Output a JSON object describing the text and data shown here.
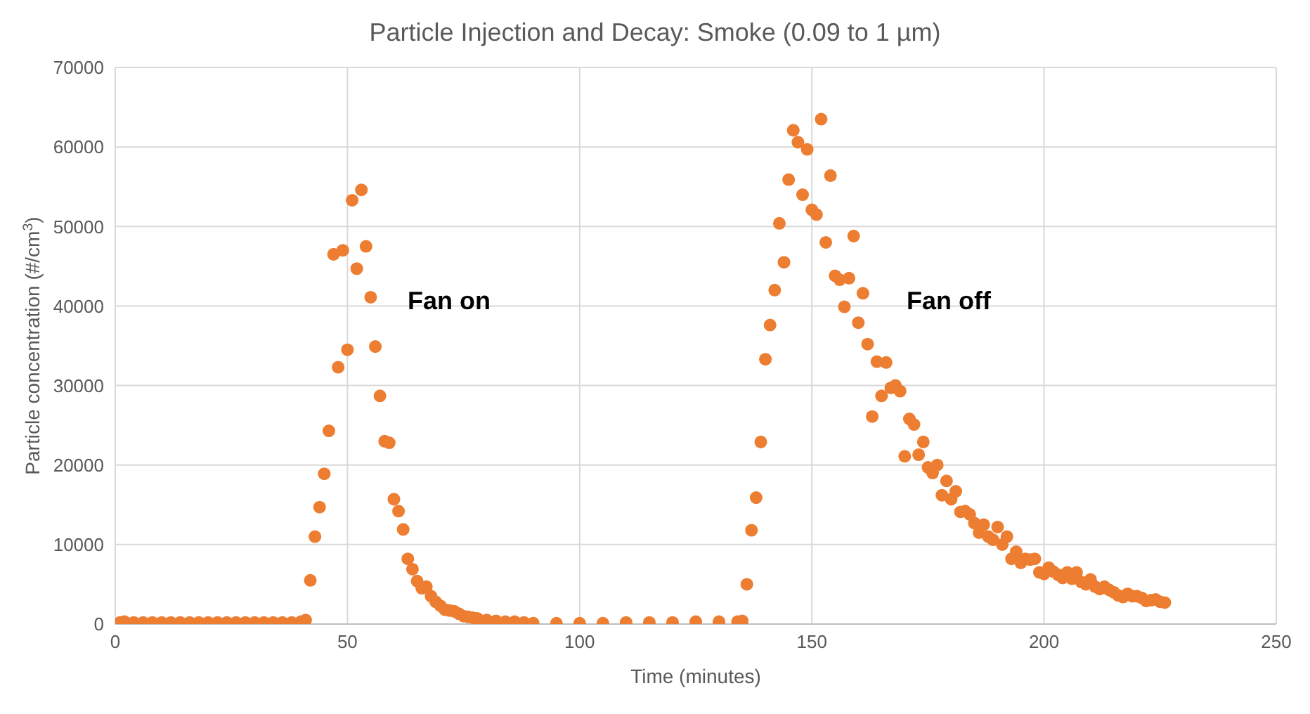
{
  "chart_data": {
    "type": "scatter",
    "title": "Particle Injection and Decay: Smoke (0.09 to 1 µm)",
    "xlabel": "Time (minutes)",
    "ylabel": "Particle concentration (#/cm$^{3}$)",
    "xlim": [
      0,
      250
    ],
    "xticks": [
      0,
      50,
      100,
      150,
      200,
      250
    ],
    "ylim": [
      0,
      70000
    ],
    "yticks": [
      0,
      10000,
      20000,
      30000,
      40000,
      50000,
      60000,
      70000
    ],
    "grid": true,
    "marker": "circle",
    "annotations": [
      "Fan on",
      "Fan off"
    ],
    "series": [
      {
        "color": "#ed7d31",
        "x": [
          1,
          2,
          4,
          6,
          8,
          10,
          12,
          14,
          16,
          18,
          20,
          22,
          24,
          26,
          28,
          30,
          32,
          34,
          36,
          38,
          40,
          41,
          42,
          43,
          44,
          45,
          46,
          47,
          48,
          49,
          50,
          51,
          52,
          53,
          54,
          55,
          56,
          57,
          58,
          59,
          60,
          61,
          62,
          63,
          64,
          65,
          66,
          67,
          68,
          69,
          70,
          71,
          72,
          73,
          74,
          75,
          76,
          77,
          78,
          80,
          82,
          84,
          86,
          88,
          90,
          95,
          100,
          105,
          110,
          115,
          120,
          125,
          130,
          134,
          135,
          136,
          137,
          138,
          139,
          140,
          141,
          142,
          143,
          144,
          145,
          146,
          147,
          148,
          149,
          150,
          151,
          152,
          153,
          154,
          155,
          156,
          157,
          158,
          159,
          160,
          161,
          162,
          163,
          164,
          165,
          166,
          167,
          168,
          169,
          170,
          171,
          172,
          173,
          174,
          175,
          176,
          177,
          178,
          179,
          180,
          181,
          182,
          183,
          184,
          185,
          186,
          187,
          188,
          189,
          190,
          191,
          192,
          193,
          194,
          195,
          196,
          197,
          198,
          199,
          200,
          201,
          202,
          203,
          204,
          205,
          206,
          207,
          208,
          209,
          210,
          211,
          212,
          213,
          214,
          215,
          216,
          217,
          218,
          219,
          220,
          221,
          222,
          223,
          224,
          225,
          226
        ],
        "values": [
          200,
          300,
          200,
          200,
          200,
          200,
          200,
          200,
          200,
          200,
          200,
          200,
          200,
          200,
          200,
          200,
          200,
          200,
          200,
          200,
          300,
          500,
          5500,
          11000,
          14700,
          18900,
          24300,
          46500,
          32300,
          47000,
          34500,
          53300,
          44700,
          54600,
          47500,
          41100,
          34900,
          28700,
          23000,
          22800,
          15700,
          14200,
          11900,
          8200,
          6900,
          5400,
          4500,
          4700,
          3500,
          2800,
          2300,
          1800,
          1700,
          1600,
          1300,
          1000,
          900,
          800,
          700,
          500,
          400,
          300,
          300,
          200,
          100,
          100,
          100,
          100,
          200,
          200,
          200,
          300,
          300,
          300,
          400,
          5000,
          11800,
          15900,
          22900,
          33300,
          37600,
          42000,
          50400,
          45500,
          55900,
          62100,
          60600,
          54000,
          59700,
          52100,
          51500,
          63500,
          48000,
          56400,
          43800,
          43300,
          39900,
          43500,
          48800,
          37900,
          41600,
          35200,
          26100,
          33000,
          28700,
          32900,
          29700,
          30000,
          29300,
          21100,
          25800,
          25100,
          21300,
          22900,
          19700,
          19000,
          20000,
          16200,
          18000,
          15700,
          16700,
          14100,
          14200,
          13800,
          12700,
          11500,
          12500,
          11000,
          10600,
          12200,
          10000,
          11000,
          8200,
          9100,
          7700,
          8200,
          8100,
          8200,
          6500,
          6300,
          7100,
          6600,
          6200,
          5800,
          6500,
          5700,
          6500,
          5300,
          5000,
          5600,
          4700,
          4400,
          4700,
          4300,
          4000,
          3600,
          3400,
          3800,
          3500,
          3500,
          3300,
          2900,
          3000,
          3100,
          2800,
          2700
        ]
      }
    ]
  }
}
